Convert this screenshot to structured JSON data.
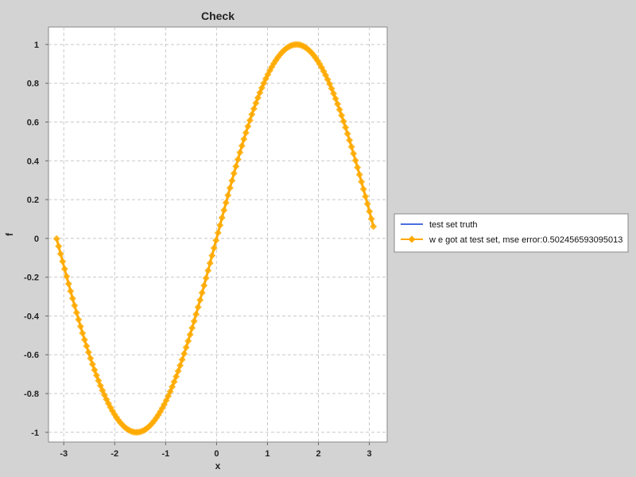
{
  "chart_data": {
    "type": "line",
    "title": "Check",
    "xlabel": "x",
    "ylabel": "f",
    "xlim": [
      -3.3,
      3.35
    ],
    "ylim": [
      -1.05,
      1.09
    ],
    "xticks": [
      -3,
      -2,
      -1,
      0,
      1,
      2,
      3
    ],
    "yticks": [
      -1,
      -0.8,
      -0.6,
      -0.4,
      -0.2,
      0,
      0.2,
      0.4,
      0.6,
      0.8,
      1
    ],
    "grid": true,
    "legend_position": "right",
    "series": [
      {
        "name": "test set truth",
        "color": "#4a6fe0",
        "marker": "none",
        "function": "sin(x)",
        "x_range": [
          -3.14,
          3.08
        ]
      },
      {
        "name": "w e got at test set, mse error:0.502456593095013",
        "color": "#ffaa00",
        "marker": "diamond",
        "function": "sin(x)",
        "x_range": [
          -3.14,
          3.08
        ]
      }
    ]
  }
}
